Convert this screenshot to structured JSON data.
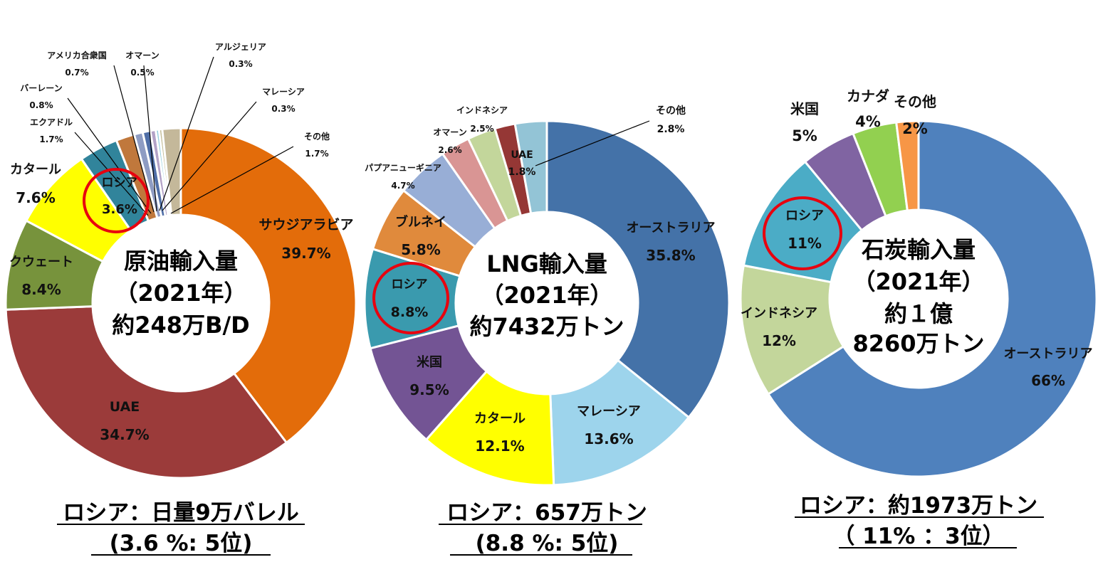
{
  "chart_data": [
    {
      "type": "pie",
      "title": "原油輸入量（2021年）約248万B/D",
      "center_lines": [
        "原油輸入量",
        "（2021年）",
        "約248万B/D"
      ],
      "categories": [
        "サウジアラビア",
        "UAE",
        "クウェート",
        "カタール",
        "ロシア",
        "エクアドル",
        "バーレーン",
        "アメリカ合衆国",
        "オマーン",
        "アルジェリア",
        "マレーシア",
        "その他"
      ],
      "values": [
        39.7,
        34.7,
        8.4,
        7.6,
        3.6,
        1.7,
        0.8,
        0.7,
        0.5,
        0.3,
        0.3,
        1.7
      ],
      "value_labels": [
        "39.7%",
        "34.7%",
        "8.4%",
        "7.6%",
        "3.6%",
        "1.7%",
        "0.8%",
        "0.7%",
        "0.5%",
        "0.3%",
        "0.3%",
        "1.7%"
      ],
      "colors": [
        "#E36C0A",
        "#9B3B3A",
        "#77933C",
        "#FFFF00",
        "#31849B",
        "#C0783C",
        "#8E9CC3",
        "#4F6EA7",
        "#B3A2C7",
        "#93CDDD",
        "#C4BD97",
        "#C4B89A"
      ],
      "highlight": "ロシア",
      "footnote": [
        "ロシア：日量9万バレル",
        "(3.6 %:  5位)"
      ]
    },
    {
      "type": "pie",
      "title": "LNG輸入量（2021年）約7432万トン",
      "center_lines": [
        "LNG輸入量",
        "（2021年）",
        "約7432万トン"
      ],
      "categories": [
        "オーストラリア",
        "マレーシア",
        "カタール",
        "米国",
        "ロシア",
        "ブルネイ",
        "パプアニューギニア",
        "オマーン",
        "インドネシア",
        "UAE",
        "その他"
      ],
      "values": [
        35.8,
        13.6,
        12.1,
        9.5,
        8.8,
        5.8,
        4.7,
        2.6,
        2.5,
        1.8,
        2.8
      ],
      "value_labels": [
        "35.8%",
        "13.6%",
        "12.1%",
        "9.5%",
        "8.8%",
        "5.8%",
        "4.7%",
        "2.6%",
        "2.5%",
        "1.8%",
        "2.8%"
      ],
      "colors": [
        "#4472A8",
        "#9DD4EC",
        "#FFFF00",
        "#735494",
        "#3A9AAE",
        "#E08A3C",
        "#98AED6",
        "#D99594",
        "#C3D69B",
        "#953735",
        "#93C4D6"
      ],
      "highlight": "ロシア",
      "footnote": [
        "ロシア：657万トン",
        "(8.8 %:  5位)"
      ]
    },
    {
      "type": "pie",
      "title": "石炭輸入量（2021年）約１億8260万トン",
      "center_lines": [
        "石炭輸入量",
        "（2021年）",
        "約１億",
        "8260万トン"
      ],
      "categories": [
        "オーストラリア",
        "インドネシア",
        "ロシア",
        "米国",
        "カナダ",
        "その他"
      ],
      "values": [
        66,
        12,
        11,
        5,
        4,
        2
      ],
      "value_labels": [
        "66%",
        "12%",
        "11%",
        "5%",
        "4%",
        "2%"
      ],
      "colors": [
        "#4F81BD",
        "#C3D69B",
        "#4BACC6",
        "#8064A2",
        "#92D050",
        "#F79646"
      ],
      "highlight": "ロシア",
      "footnote": [
        "ロシア：約1973万トン",
        "（ 11%  ：3位）"
      ]
    }
  ]
}
